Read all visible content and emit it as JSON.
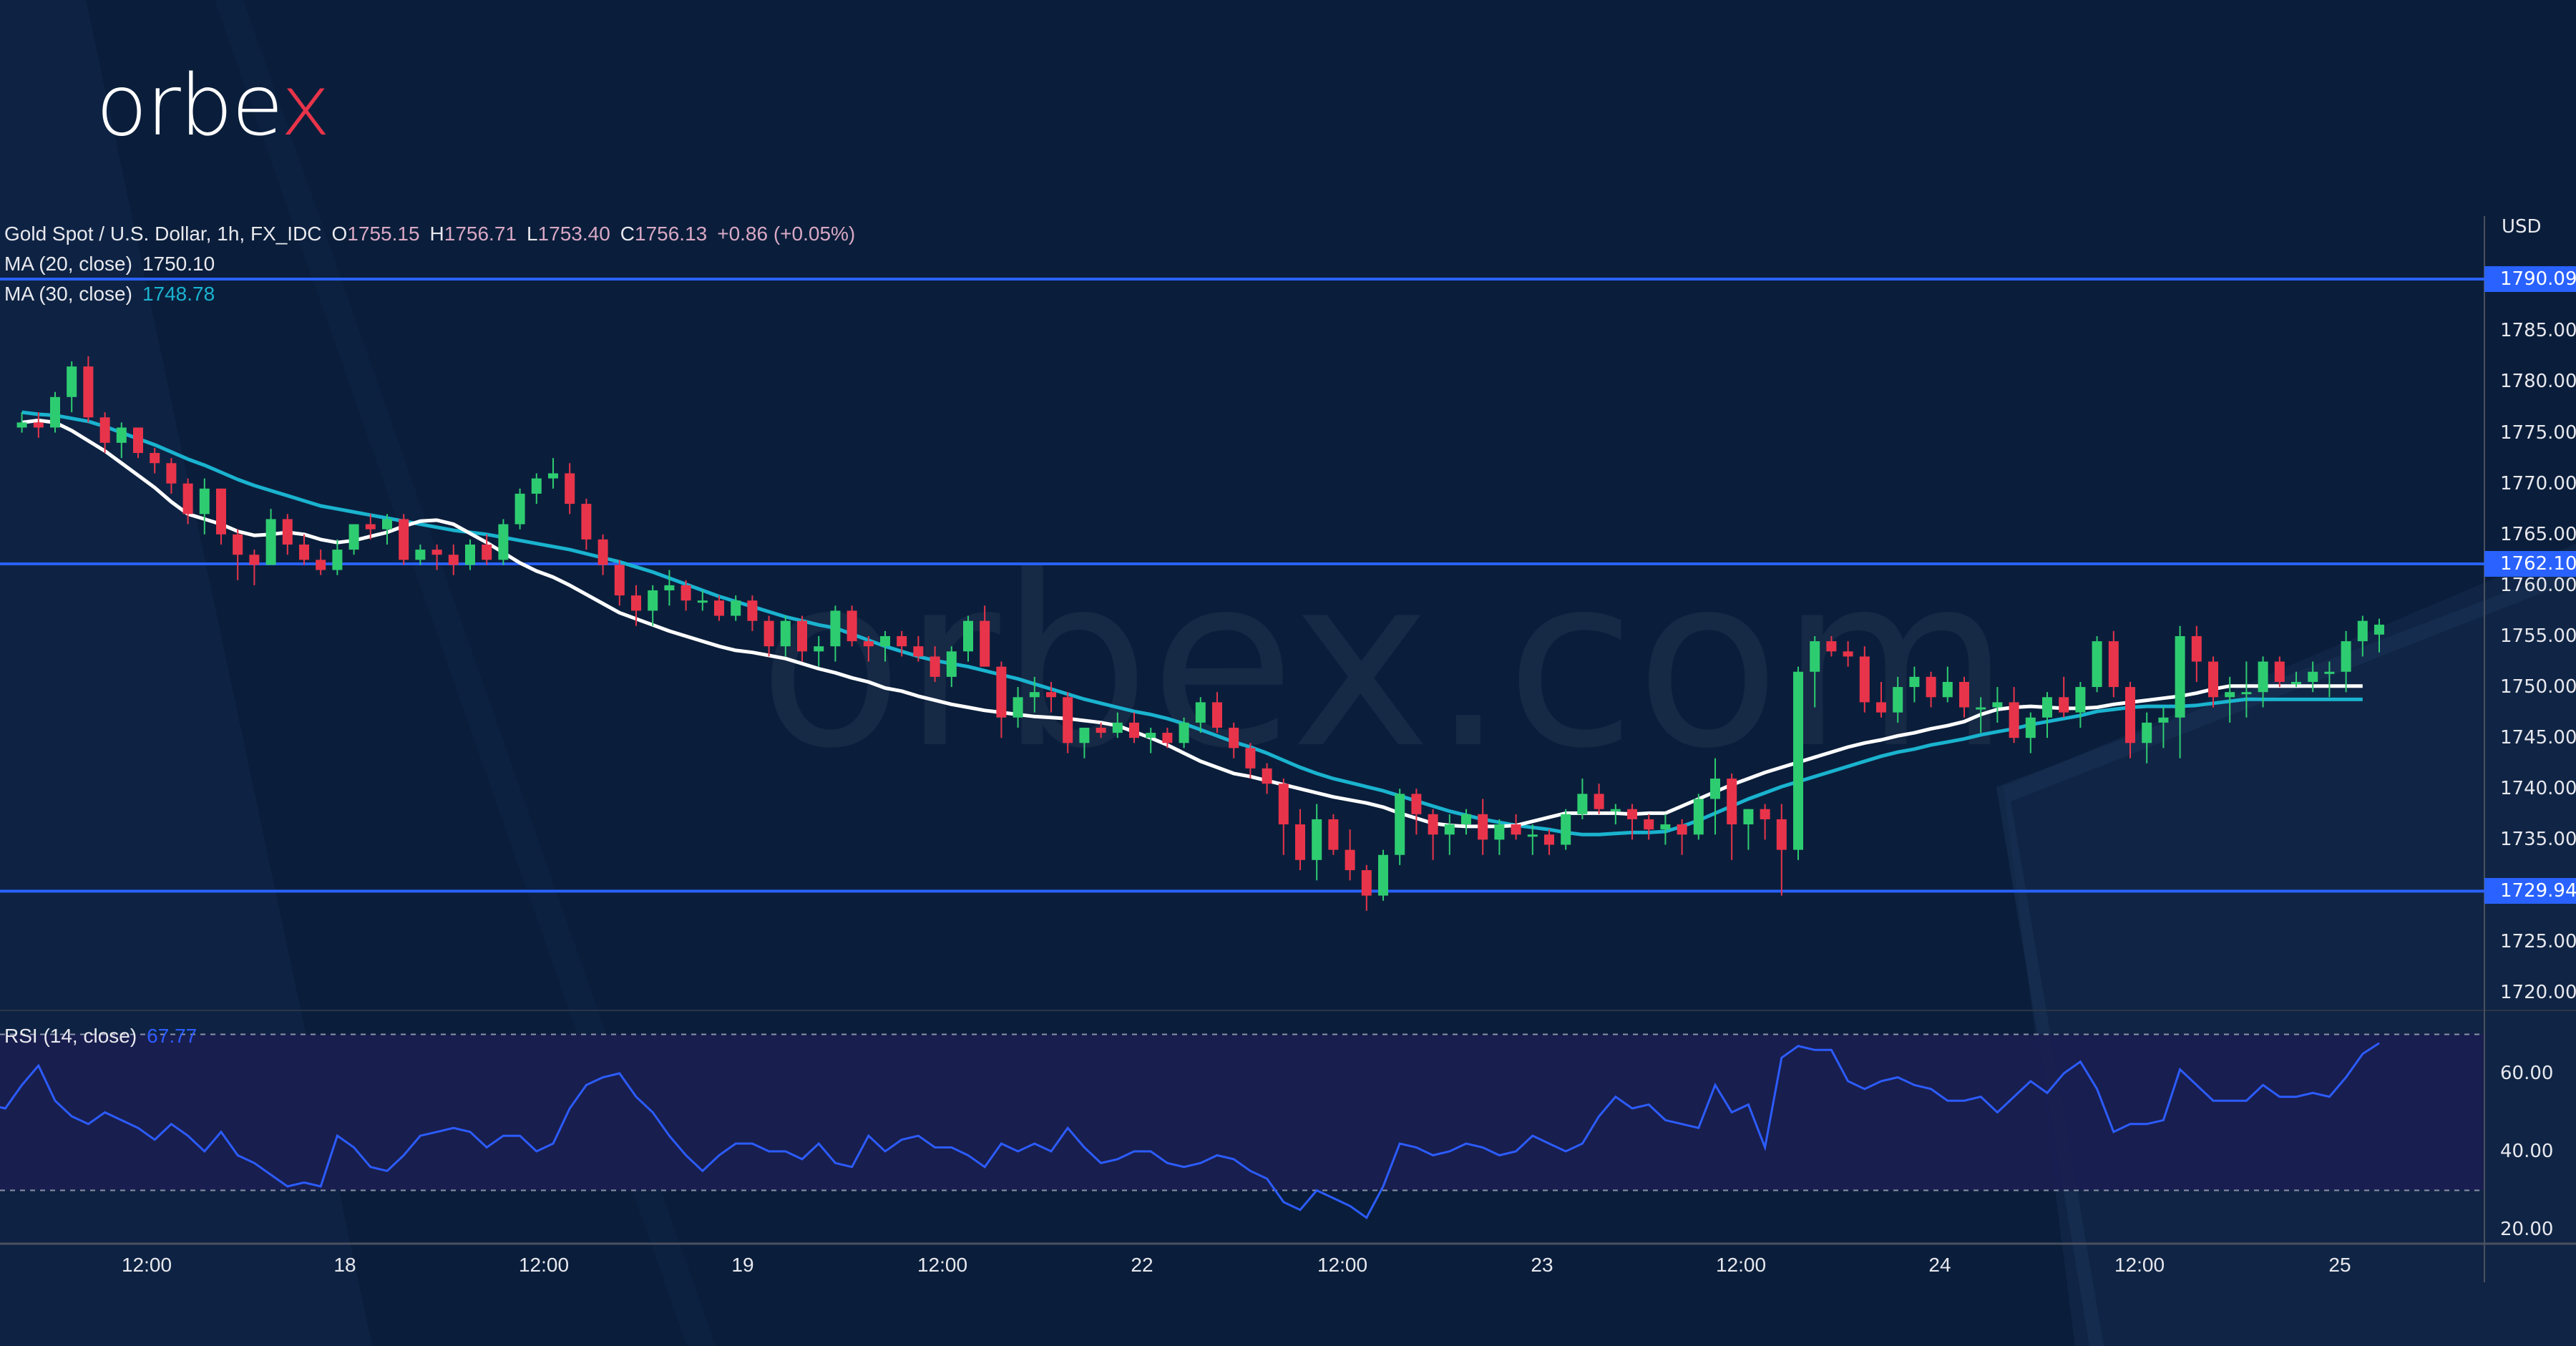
{
  "brand": {
    "logo_text_main": "orbe",
    "logo_text_accent": "x",
    "watermark": "orbex.com"
  },
  "legend": {
    "symbol": "Gold Spot / U.S. Dollar, 1h, FX_IDC",
    "open_label": "O",
    "open": "1755.15",
    "high_label": "H",
    "high": "1756.71",
    "low_label": "L",
    "low": "1753.40",
    "close_label": "C",
    "close": "1756.13",
    "change": "+0.86 (+0.05%)",
    "ma20_label": "MA (20, close)",
    "ma20_value": "1750.10",
    "ma30_label": "MA (30, close)",
    "ma30_value": "1748.78"
  },
  "rsi": {
    "label": "RSI (14, close)",
    "value": "67.77"
  },
  "axis": {
    "currency": "USD"
  },
  "colors": {
    "background": "#0a1e3b",
    "up": "#2ecc71",
    "down": "#e8344a",
    "ma20": "#ffffff",
    "ma30": "#1ab3cf",
    "level": "#2962ff",
    "rsi_line": "#2c5cff",
    "rsi_band": "#1a1e50"
  },
  "chart_data": {
    "type": "candlestick",
    "title": "Gold Spot / U.S. Dollar, 1h, FX_IDC",
    "ylabel": "USD",
    "ylim": [
      1717,
      1794
    ],
    "price_ticks": [
      "1785.00",
      "1780.00",
      "1775.00",
      "1770.00",
      "1765.00",
      "1760.00",
      "1755.00",
      "1750.00",
      "1745.00",
      "1740.00",
      "1735.00",
      "1725.00",
      "1720.00"
    ],
    "price_tick_values": [
      1785,
      1780,
      1775,
      1770,
      1765,
      1760,
      1755,
      1750,
      1745,
      1740,
      1735,
      1725,
      1720
    ],
    "horizontal_levels": [
      {
        "label": "1790.09",
        "value": 1790.09
      },
      {
        "label": "1762.10",
        "value": 1762.1
      },
      {
        "label": "1729.94",
        "value": 1729.94
      }
    ],
    "time_ticks": [
      {
        "label": "12:00",
        "x": 205
      },
      {
        "label": "18",
        "x": 482
      },
      {
        "label": "12:00",
        "x": 760
      },
      {
        "label": "19",
        "x": 1038
      },
      {
        "label": "12:00",
        "x": 1317
      },
      {
        "label": "22",
        "x": 1596
      },
      {
        "label": "12:00",
        "x": 1876
      },
      {
        "label": "23",
        "x": 2155
      },
      {
        "label": "12:00",
        "x": 2433
      },
      {
        "label": "24",
        "x": 2711
      },
      {
        "label": "12:00",
        "x": 2990
      },
      {
        "label": "25",
        "x": 3270
      }
    ],
    "candles_ohlc": [
      [
        1775.5,
        1777,
        1775,
        1776
      ],
      [
        1776,
        1777,
        1774.5,
        1775.5
      ],
      [
        1775.5,
        1779,
        1775,
        1778.5
      ],
      [
        1778.5,
        1782,
        1777,
        1781.5
      ],
      [
        1781.5,
        1782.5,
        1776,
        1776.5
      ],
      [
        1776.5,
        1777,
        1773,
        1774
      ],
      [
        1774,
        1776,
        1772.5,
        1775.5
      ],
      [
        1775.5,
        1775.5,
        1772.5,
        1773
      ],
      [
        1773,
        1773.5,
        1771,
        1772
      ],
      [
        1772,
        1772.5,
        1769,
        1770
      ],
      [
        1770,
        1770.5,
        1766,
        1767
      ],
      [
        1767,
        1770.5,
        1765,
        1769.5
      ],
      [
        1769.5,
        1769.5,
        1764,
        1765
      ],
      [
        1765,
        1765.5,
        1760.5,
        1763
      ],
      [
        1763,
        1763.5,
        1760,
        1762
      ],
      [
        1762,
        1767.5,
        1762,
        1766.5
      ],
      [
        1766.5,
        1767,
        1763,
        1764
      ],
      [
        1764,
        1765,
        1762,
        1762.5
      ],
      [
        1762.5,
        1763.5,
        1761,
        1761.5
      ],
      [
        1761.5,
        1764.5,
        1761,
        1763.5
      ],
      [
        1763.5,
        1766,
        1763,
        1766
      ],
      [
        1766,
        1767,
        1764.5,
        1765.5
      ],
      [
        1765.5,
        1767,
        1764,
        1766.5
      ],
      [
        1766.5,
        1767,
        1762,
        1762.5
      ],
      [
        1762.5,
        1764,
        1762,
        1763.5
      ],
      [
        1763.5,
        1764,
        1761.5,
        1763
      ],
      [
        1763,
        1764,
        1761,
        1762
      ],
      [
        1762,
        1764.5,
        1761.5,
        1764
      ],
      [
        1764,
        1765,
        1762,
        1762.5
      ],
      [
        1762.5,
        1766.5,
        1762,
        1766
      ],
      [
        1766,
        1769.5,
        1765.5,
        1769
      ],
      [
        1769,
        1771,
        1768,
        1770.5
      ],
      [
        1770.5,
        1772.5,
        1769.5,
        1771
      ],
      [
        1771,
        1772,
        1767,
        1768
      ],
      [
        1768,
        1768.5,
        1763.5,
        1764.5
      ],
      [
        1764.5,
        1765,
        1761,
        1762
      ],
      [
        1762,
        1762.5,
        1758,
        1759
      ],
      [
        1759,
        1760,
        1756,
        1757.5
      ],
      [
        1757.5,
        1760,
        1756,
        1759.5
      ],
      [
        1759.5,
        1761.5,
        1758,
        1760
      ],
      [
        1760,
        1760.5,
        1757.5,
        1758.5
      ],
      [
        1758.5,
        1759.5,
        1757.5,
        1758.5
      ],
      [
        1758.5,
        1759,
        1756.5,
        1757
      ],
      [
        1757,
        1759,
        1756.5,
        1758.5
      ],
      [
        1758.5,
        1759,
        1755.5,
        1756.5
      ],
      [
        1756.5,
        1757,
        1753,
        1754
      ],
      [
        1754,
        1757,
        1753,
        1756.5
      ],
      [
        1756.5,
        1757,
        1752.5,
        1753.5
      ],
      [
        1753.5,
        1755,
        1752,
        1754
      ],
      [
        1754,
        1758,
        1752.5,
        1757.5
      ],
      [
        1757.5,
        1758,
        1754,
        1754.5
      ],
      [
        1754.5,
        1755,
        1752.5,
        1754
      ],
      [
        1754,
        1755.5,
        1752.5,
        1755
      ],
      [
        1755,
        1755.5,
        1753,
        1754
      ],
      [
        1754,
        1755,
        1752.5,
        1753
      ],
      [
        1753,
        1754,
        1750.5,
        1751
      ],
      [
        1751,
        1754,
        1750,
        1753.5
      ],
      [
        1753.5,
        1757,
        1752.5,
        1756.5
      ],
      [
        1756.5,
        1758,
        1752,
        1752
      ],
      [
        1752,
        1752.5,
        1745,
        1747
      ],
      [
        1747,
        1750,
        1746,
        1749
      ],
      [
        1749,
        1751,
        1747.5,
        1749.5
      ],
      [
        1749.5,
        1750.5,
        1747.5,
        1749
      ],
      [
        1749,
        1749.5,
        1743.5,
        1744.5
      ],
      [
        1744.5,
        1746,
        1743,
        1746
      ],
      [
        1746,
        1746.5,
        1745,
        1745.5
      ],
      [
        1745.5,
        1747.5,
        1745,
        1746.5
      ],
      [
        1746.5,
        1747.5,
        1744.5,
        1745
      ],
      [
        1745,
        1746,
        1743.5,
        1745.5
      ],
      [
        1745.5,
        1746,
        1744,
        1744.5
      ],
      [
        1744.5,
        1747,
        1744,
        1746.5
      ],
      [
        1746.5,
        1749,
        1745.5,
        1748.5
      ],
      [
        1748.5,
        1749.5,
        1745.5,
        1746
      ],
      [
        1746,
        1746.5,
        1743,
        1744
      ],
      [
        1744,
        1744.5,
        1741,
        1742
      ],
      [
        1742,
        1742.5,
        1739.5,
        1740.5
      ],
      [
        1740.5,
        1741,
        1733.5,
        1736.5
      ],
      [
        1736.5,
        1738,
        1732,
        1733
      ],
      [
        1733,
        1738.5,
        1731,
        1737
      ],
      [
        1737,
        1737.5,
        1733.5,
        1734
      ],
      [
        1734,
        1736,
        1731,
        1732
      ],
      [
        1732,
        1732.5,
        1728,
        1729.5
      ],
      [
        1729.5,
        1734,
        1729,
        1733.5
      ],
      [
        1733.5,
        1740,
        1732.5,
        1739.5
      ],
      [
        1739.5,
        1740,
        1735.5,
        1737.5
      ],
      [
        1737.5,
        1738,
        1733,
        1735.5
      ],
      [
        1735.5,
        1737.5,
        1733.5,
        1736.5
      ],
      [
        1736.5,
        1738,
        1735.5,
        1737.5
      ],
      [
        1737.5,
        1739,
        1733.5,
        1735
      ],
      [
        1735,
        1737,
        1733.5,
        1736.5
      ],
      [
        1736.5,
        1737.5,
        1735,
        1735.5
      ],
      [
        1735.5,
        1736.5,
        1733.5,
        1735.5
      ],
      [
        1735.5,
        1736,
        1733.5,
        1734.5
      ],
      [
        1734.5,
        1738,
        1734,
        1737.5
      ],
      [
        1737.5,
        1741,
        1737,
        1739.5
      ],
      [
        1739.5,
        1740.5,
        1737.5,
        1738
      ],
      [
        1738,
        1738.5,
        1736.5,
        1738
      ],
      [
        1738,
        1738.5,
        1735,
        1737
      ],
      [
        1737,
        1737.5,
        1735,
        1736
      ],
      [
        1736,
        1737.5,
        1734.5,
        1736.5
      ],
      [
        1736.5,
        1737,
        1733.5,
        1735.5
      ],
      [
        1735.5,
        1739.5,
        1735,
        1739
      ],
      [
        1739,
        1743,
        1735.5,
        1741
      ],
      [
        1741,
        1741.5,
        1733,
        1736.5
      ],
      [
        1736.5,
        1738,
        1734,
        1738
      ],
      [
        1738,
        1738.5,
        1735,
        1737
      ],
      [
        1737,
        1738.5,
        1729.5,
        1734
      ],
      [
        1734,
        1752,
        1733,
        1751.5
      ],
      [
        1751.5,
        1755,
        1748,
        1754.5
      ],
      [
        1754.5,
        1755,
        1753,
        1753.5
      ],
      [
        1753.5,
        1754.5,
        1752,
        1753
      ],
      [
        1753,
        1754,
        1747.5,
        1748.5
      ],
      [
        1748.5,
        1750.5,
        1747,
        1747.5
      ],
      [
        1747.5,
        1751,
        1746.5,
        1750
      ],
      [
        1750,
        1752,
        1748.5,
        1751
      ],
      [
        1751,
        1751.5,
        1748,
        1749
      ],
      [
        1749,
        1752,
        1748.5,
        1750.5
      ],
      [
        1750.5,
        1751,
        1747,
        1748
      ],
      [
        1748,
        1749,
        1745.5,
        1748
      ],
      [
        1748,
        1750,
        1746.5,
        1748.5
      ],
      [
        1748.5,
        1750,
        1744.5,
        1745
      ],
      [
        1745,
        1747.5,
        1743.5,
        1747
      ],
      [
        1747,
        1749.5,
        1745,
        1749
      ],
      [
        1749,
        1751,
        1747,
        1747.5
      ],
      [
        1747.5,
        1750.5,
        1746,
        1750
      ],
      [
        1750,
        1755,
        1749.5,
        1754.5
      ],
      [
        1754.5,
        1755.5,
        1749,
        1750
      ],
      [
        1750,
        1750.5,
        1743,
        1744.5
      ],
      [
        1744.5,
        1747.5,
        1742.5,
        1746.5
      ],
      [
        1746.5,
        1748,
        1744,
        1747
      ],
      [
        1747,
        1756,
        1743,
        1755
      ],
      [
        1755,
        1756,
        1750.5,
        1752.5
      ],
      [
        1752.5,
        1753,
        1748,
        1749
      ],
      [
        1749,
        1751,
        1746.5,
        1749.5
      ],
      [
        1749.5,
        1752.5,
        1747,
        1749.5
      ],
      [
        1749.5,
        1753,
        1748,
        1752.5
      ],
      [
        1752.5,
        1753,
        1750,
        1750.5
      ],
      [
        1750.5,
        1751.5,
        1750,
        1750.5
      ],
      [
        1750.5,
        1752.5,
        1749.5,
        1751.5
      ],
      [
        1751.5,
        1752.5,
        1749,
        1751.5
      ],
      [
        1751.5,
        1755.5,
        1749.5,
        1754.5
      ],
      [
        1754.5,
        1757,
        1753,
        1756.5
      ],
      [
        1755.15,
        1756.71,
        1753.4,
        1756.13
      ]
    ],
    "ma20": [
      1776,
      1776.2,
      1776,
      1775.2,
      1774.2,
      1773.2,
      1772,
      1770.8,
      1769.6,
      1768.2,
      1767,
      1766.5,
      1766,
      1765.3,
      1764.9,
      1765,
      1765.2,
      1765,
      1764.5,
      1764.2,
      1764.4,
      1764.8,
      1765.2,
      1765.8,
      1766.3,
      1766.4,
      1766,
      1765.1,
      1764.2,
      1763.2,
      1762.2,
      1761.4,
      1760.8,
      1760,
      1759.1,
      1758.2,
      1757.3,
      1756.7,
      1756.1,
      1755.5,
      1755,
      1754.5,
      1754,
      1753.6,
      1753.4,
      1753.1,
      1752.8,
      1752.3,
      1751.8,
      1751.4,
      1750.9,
      1750.5,
      1749.9,
      1749.6,
      1749.1,
      1748.7,
      1748.3,
      1748,
      1747.7,
      1747.5,
      1747.3,
      1747.1,
      1747,
      1746.9,
      1746.7,
      1746.5,
      1746.2,
      1745.6,
      1745,
      1744.3,
      1743.5,
      1742.7,
      1742.1,
      1741.5,
      1741.2,
      1740.8,
      1740.4,
      1740,
      1739.6,
      1739.2,
      1738.9,
      1738.6,
      1738.2,
      1737.6,
      1737.1,
      1736.6,
      1736.4,
      1736.3,
      1736.3,
      1736.3,
      1736.4,
      1736.8,
      1737.2,
      1737.6,
      1737.6,
      1737.6,
      1737.6,
      1737.5,
      1737.6,
      1737.6,
      1738.3,
      1739,
      1739.7,
      1740.4,
      1741,
      1741.6,
      1742.1,
      1742.6,
      1743.1,
      1743.6,
      1744.1,
      1744.5,
      1744.8,
      1745.2,
      1745.5,
      1745.9,
      1746.2,
      1746.6,
      1747.3,
      1747.8,
      1748,
      1748.1,
      1748,
      1747.9,
      1747.9,
      1748,
      1748.3,
      1748.5,
      1748.7,
      1748.9,
      1749.1,
      1749.4,
      1749.8,
      1750.1,
      1750.1,
      1750.1,
      1750.1,
      1750.1,
      1750.1,
      1750.1,
      1750.1,
      1750.1
    ],
    "ma30": [
      1777,
      1776.8,
      1776.7,
      1776.4,
      1776.1,
      1775.6,
      1775,
      1774.4,
      1773.8,
      1773.1,
      1772.4,
      1771.8,
      1771.1,
      1770.4,
      1769.8,
      1769.3,
      1768.8,
      1768.3,
      1767.8,
      1767.5,
      1767.2,
      1766.9,
      1766.6,
      1766.3,
      1766,
      1765.7,
      1765.4,
      1765.2,
      1765,
      1764.7,
      1764.4,
      1764.1,
      1763.8,
      1763.5,
      1763.1,
      1762.7,
      1762.3,
      1761.8,
      1761.3,
      1760.7,
      1760.1,
      1759.5,
      1758.9,
      1758.4,
      1757.9,
      1757.4,
      1756.9,
      1756.5,
      1756.1,
      1755.8,
      1755.2,
      1754.6,
      1754,
      1753.5,
      1753,
      1752.6,
      1752.3,
      1752,
      1751.6,
      1751.2,
      1750.8,
      1750.3,
      1749.8,
      1749.3,
      1748.8,
      1748.4,
      1748,
      1747.6,
      1747.3,
      1746.9,
      1746.4,
      1745.8,
      1745.2,
      1744.6,
      1744.1,
      1743.5,
      1742.8,
      1742.1,
      1741.5,
      1741,
      1740.6,
      1740.2,
      1739.8,
      1739.3,
      1738.8,
      1738.3,
      1737.8,
      1737.4,
      1737,
      1736.7,
      1736.4,
      1736.2,
      1736,
      1735.7,
      1735.5,
      1735.5,
      1735.6,
      1735.7,
      1735.7,
      1735.8,
      1736.3,
      1736.9,
      1737.6,
      1738.3,
      1739,
      1739.6,
      1740.2,
      1740.7,
      1741.2,
      1741.7,
      1742.2,
      1742.7,
      1743.2,
      1743.6,
      1743.9,
      1744.3,
      1744.6,
      1744.9,
      1745.3,
      1745.6,
      1745.9,
      1746.3,
      1746.6,
      1746.9,
      1747.2,
      1747.6,
      1747.8,
      1748,
      1748.1,
      1748.1,
      1748.1,
      1748.2,
      1748.4,
      1748.6,
      1748.8,
      1748.78,
      1748.78,
      1748.78,
      1748.78,
      1748.78,
      1748.78,
      1748.78
    ],
    "rsi": {
      "ylim": [
        14,
        76
      ],
      "ticks": [
        "60.00",
        "40.00",
        "20.00"
      ],
      "tick_values": [
        60,
        40,
        20
      ],
      "band": [
        30,
        70
      ],
      "values": [
        52,
        51,
        57,
        62,
        53,
        49,
        47,
        50,
        48,
        46,
        43,
        47,
        44,
        40,
        45,
        39,
        37,
        34,
        31,
        32,
        31,
        44,
        41,
        36,
        35,
        39,
        44,
        45,
        46,
        45,
        41,
        44,
        44,
        40,
        42,
        51,
        57,
        59,
        60,
        54,
        50,
        44,
        39,
        35,
        39,
        42,
        42,
        40,
        40,
        38,
        42,
        37,
        36,
        44,
        40,
        43,
        44,
        41,
        41,
        39,
        36,
        42,
        40,
        42,
        40,
        46,
        41,
        37,
        38,
        40,
        40,
        37,
        36,
        37,
        39,
        38,
        35,
        33,
        27,
        25,
        30,
        28,
        26,
        23,
        31,
        42,
        41,
        39,
        40,
        42,
        41,
        39,
        40,
        44,
        42,
        40,
        42,
        49,
        54,
        51,
        52,
        48,
        47,
        46,
        57,
        50,
        52,
        41,
        64,
        67,
        66,
        66,
        58,
        56,
        58,
        59,
        57,
        56,
        53,
        53,
        54,
        50,
        54,
        58,
        55,
        60,
        63,
        56,
        45,
        47,
        47,
        48,
        61,
        57,
        53,
        53,
        53,
        57,
        54,
        54,
        55,
        54,
        59,
        65,
        67.77
      ]
    }
  }
}
